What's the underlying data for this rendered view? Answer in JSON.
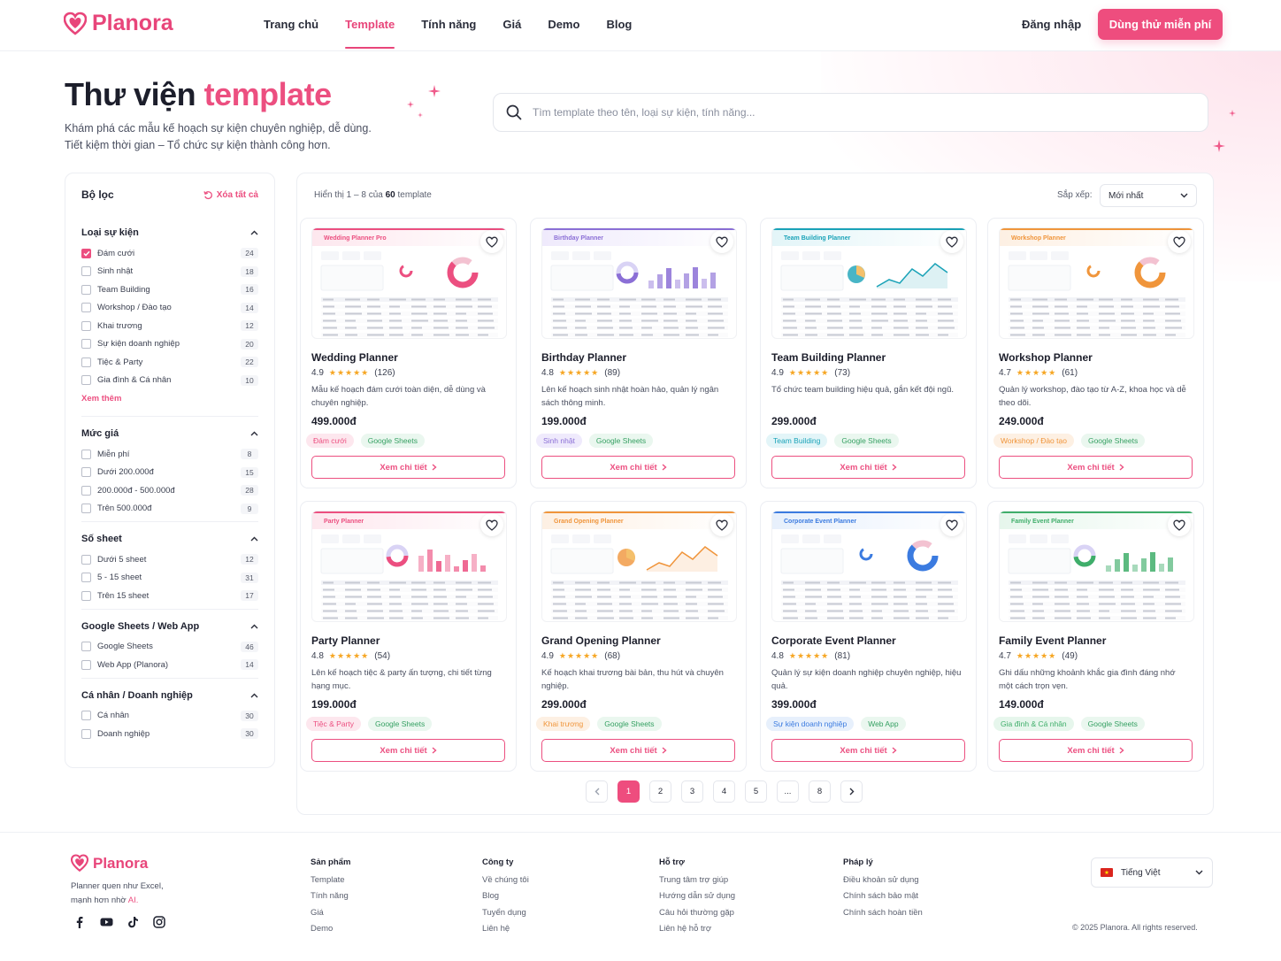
{
  "brand": {
    "name": "Planora",
    "color": "#ec4f80"
  },
  "nav": {
    "items": [
      {
        "label": "Trang chủ",
        "active": false
      },
      {
        "label": "Template",
        "active": true
      },
      {
        "label": "Tính năng",
        "active": false
      },
      {
        "label": "Giá",
        "active": false
      },
      {
        "label": "Demo",
        "active": false
      },
      {
        "label": "Blog",
        "active": false
      }
    ],
    "login": "Đăng nhập",
    "trial": "Dùng thử miễn phí"
  },
  "hero": {
    "title_plain": "Thư viện",
    "title_accent": "template",
    "subtitle_line1": "Khám phá các mẫu kế hoạch sự kiện chuyên nghiệp, dễ dùng.",
    "subtitle_line2": "Tiết kiệm thời gian – Tổ chức sự kiện thành công hơn.",
    "search_placeholder": "Tìm template theo tên, loại sự kiện, tính năng..."
  },
  "filters": {
    "title": "Bộ lọc",
    "clear_all": "Xóa tất cả",
    "show_more": "Xem thêm",
    "groups": [
      {
        "title": "Loại sự kiện",
        "options": [
          {
            "label": "Đám cưới",
            "count": "24",
            "checked": true
          },
          {
            "label": "Sinh nhật",
            "count": "18",
            "checked": false
          },
          {
            "label": "Team Building",
            "count": "16",
            "checked": false
          },
          {
            "label": "Workshop / Đào tạo",
            "count": "14",
            "checked": false
          },
          {
            "label": "Khai trương",
            "count": "12",
            "checked": false
          },
          {
            "label": "Sự kiện doanh nghiệp",
            "count": "20",
            "checked": false
          },
          {
            "label": "Tiệc & Party",
            "count": "22",
            "checked": false
          },
          {
            "label": "Gia đình & Cá nhân",
            "count": "10",
            "checked": false
          }
        ]
      },
      {
        "title": "Mức giá",
        "options": [
          {
            "label": "Miễn phí",
            "count": "8",
            "checked": false
          },
          {
            "label": "Dưới 200.000đ",
            "count": "15",
            "checked": false
          },
          {
            "label": "200.000đ - 500.000đ",
            "count": "28",
            "checked": false
          },
          {
            "label": "Trên 500.000đ",
            "count": "9",
            "checked": false
          }
        ]
      },
      {
        "title": "Số sheet",
        "options": [
          {
            "label": "Dưới 5 sheet",
            "count": "12",
            "checked": false
          },
          {
            "label": "5 - 15 sheet",
            "count": "31",
            "checked": false
          },
          {
            "label": "Trên 15 sheet",
            "count": "17",
            "checked": false
          }
        ]
      },
      {
        "title": "Google Sheets / Web App",
        "options": [
          {
            "label": "Google Sheets",
            "count": "46",
            "checked": false
          },
          {
            "label": "Web App (Planora)",
            "count": "14",
            "checked": false
          }
        ]
      },
      {
        "title": "Cá nhân / Doanh nghiệp",
        "options": [
          {
            "label": "Cá nhân",
            "count": "30",
            "checked": false
          },
          {
            "label": "Doanh nghiệp",
            "count": "30",
            "checked": false
          }
        ]
      }
    ]
  },
  "results": {
    "showing_prefix": "Hiển thị 1 – 8 của",
    "showing_total": "60",
    "showing_suffix": "template",
    "sort_label": "Sắp xếp:",
    "sort_value": "Mới nhất"
  },
  "cards": [
    {
      "thumb_title": "Wedding Planner Pro",
      "name": "Wedding Planner",
      "rating": "4.9",
      "reviews": "(126)",
      "stars": 5,
      "desc": "Mẫu kế hoạch đám cưới toàn diện, dễ dùng và chuyên nghiệp.",
      "price": "499.000đ",
      "tags": [
        "Đám cưới",
        "Google Sheets"
      ],
      "accent": "#ec4f80",
      "tag_bg": "#fde7ee",
      "button": "Xem chi tiết"
    },
    {
      "thumb_title": "Birthday Planner",
      "name": "Birthday Planner",
      "rating": "4.8",
      "reviews": "(89)",
      "stars": 5,
      "desc": "Lên kế hoạch sinh nhật hoàn hảo, quản lý ngân sách thông minh.",
      "price": "199.000đ",
      "tags": [
        "Sinh nhật",
        "Google Sheets"
      ],
      "accent": "#8b6fd6",
      "tag_bg": "#efeafc",
      "button": "Xem chi tiết"
    },
    {
      "thumb_title": "Team Building Planner",
      "name": "Team Building Planner",
      "rating": "4.9",
      "reviews": "(73)",
      "stars": 5,
      "desc": "Tổ chức team building hiệu quả, gắn kết đội ngũ.",
      "price": "299.000đ",
      "tags": [
        "Team Building",
        "Google Sheets"
      ],
      "accent": "#1aa3b8",
      "tag_bg": "#e3f5f8",
      "button": "Xem chi tiết"
    },
    {
      "thumb_title": "Workshop Planner",
      "name": "Workshop Planner",
      "rating": "4.7",
      "reviews": "(61)",
      "stars": 5,
      "desc": "Quản lý workshop, đào tạo từ A-Z, khoa học và dễ theo dõi.",
      "price": "249.000đ",
      "tags": [
        "Workshop / Đào tạo",
        "Google Sheets"
      ],
      "accent": "#f0953b",
      "tag_bg": "#fdf0e3",
      "button": "Xem chi tiết"
    },
    {
      "thumb_title": "Party Planner",
      "name": "Party Planner",
      "rating": "4.8",
      "reviews": "(54)",
      "stars": 5,
      "desc": "Lên kế hoạch tiệc & party ấn tượng, chi tiết từng hạng mục.",
      "price": "199.000đ",
      "tags": [
        "Tiệc & Party",
        "Google Sheets"
      ],
      "accent": "#ec4f80",
      "tag_bg": "#fde7ee",
      "button": "Xem chi tiết"
    },
    {
      "thumb_title": "Grand Opening Planner",
      "name": "Grand Opening Planner",
      "rating": "4.9",
      "reviews": "(68)",
      "stars": 5,
      "desc": "Kế hoạch khai trương bài bản, thu hút và chuyên nghiệp.",
      "price": "299.000đ",
      "tags": [
        "Khai trương",
        "Google Sheets"
      ],
      "accent": "#f0953b",
      "tag_bg": "#fdf0e3",
      "button": "Xem chi tiết"
    },
    {
      "thumb_title": "Corporate Event Planner",
      "name": "Corporate Event Planner",
      "rating": "4.8",
      "reviews": "(81)",
      "stars": 5,
      "desc": "Quản lý sự kiện doanh nghiệp chuyên nghiệp, hiệu quả.",
      "price": "399.000đ",
      "tags": [
        "Sự kiện doanh nghiệp",
        "Web App"
      ],
      "accent": "#3b7be0",
      "tag_bg": "#e7f0fc",
      "button": "Xem chi tiết"
    },
    {
      "thumb_title": "Family Event Planner",
      "name": "Family Event Planner",
      "rating": "4.7",
      "reviews": "(49)",
      "stars": 5,
      "desc": "Ghi dấu những khoảnh khắc gia đình đáng nhớ một cách trọn vẹn.",
      "price": "149.000đ",
      "tags": [
        "Gia đình & Cá nhân",
        "Google Sheets"
      ],
      "accent": "#3fae6a",
      "tag_bg": "#e6f6ec",
      "button": "Xem chi tiết"
    }
  ],
  "pagination": {
    "pages": [
      "1",
      "2",
      "3",
      "4",
      "5",
      "...",
      "8"
    ],
    "current": "1"
  },
  "footer": {
    "brand": "Planora",
    "tagline_prefix": "Planner quen như Excel,",
    "tagline_line2": "mạnh hơn nhờ",
    "tagline_ai": "AI.",
    "socials": [
      "facebook-icon",
      "youtube-icon",
      "tiktok-icon",
      "instagram-icon"
    ],
    "columns": [
      {
        "title": "Sản phẩm",
        "links": [
          "Template",
          "Tính năng",
          "Giá",
          "Demo"
        ]
      },
      {
        "title": "Công ty",
        "links": [
          "Về chúng tôi",
          "Blog",
          "Tuyển dụng",
          "Liên hệ"
        ]
      },
      {
        "title": "Hỗ trợ",
        "links": [
          "Trung tâm trợ giúp",
          "Hướng dẫn sử dụng",
          "Câu hỏi thường gặp",
          "Liên hệ hỗ trợ"
        ]
      },
      {
        "title": "Pháp lý",
        "links": [
          "Điều khoản sử dụng",
          "Chính sách bảo mật",
          "Chính sách hoàn tiền"
        ]
      }
    ],
    "language": "Tiếng Việt",
    "copyright": "© 2025 Planora. All rights reserved."
  }
}
